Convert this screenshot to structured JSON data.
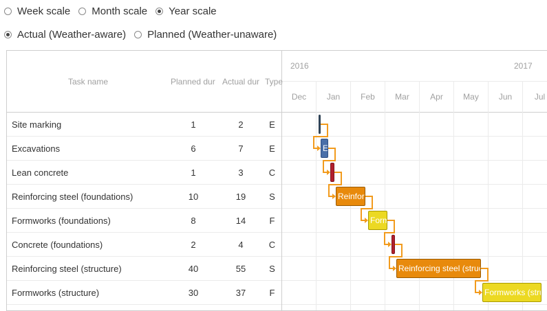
{
  "scale_options": [
    {
      "label": "Week scale",
      "checked": false
    },
    {
      "label": "Month scale",
      "checked": false
    },
    {
      "label": "Year scale",
      "checked": true
    }
  ],
  "mode_options": [
    {
      "label": "Actual (Weather-aware)",
      "checked": true
    },
    {
      "label": "Planned (Weather-unaware)",
      "checked": false
    }
  ],
  "grid": {
    "headers": {
      "name": "Task name",
      "planned": "Planned dur",
      "actual": "Actual dur",
      "type": "Type"
    }
  },
  "timeline": {
    "years": [
      {
        "label": "2016"
      },
      {
        "label": "2017"
      }
    ],
    "months": [
      "Dec",
      "Jan",
      "Feb",
      "Mar",
      "Apr",
      "May",
      "Jun",
      "Jul"
    ]
  },
  "tasks": [
    {
      "name": "Site marking",
      "planned": "1",
      "actual": "2",
      "type": "E",
      "bar_label": "",
      "color": "#34495e",
      "border": "#2c3e50"
    },
    {
      "name": "Excavations",
      "planned": "6",
      "actual": "7",
      "type": "E",
      "bar_label": "E",
      "color": "#4a6fa8",
      "border": "#2f4e82"
    },
    {
      "name": "Lean concrete",
      "planned": "1",
      "actual": "3",
      "type": "C",
      "bar_label": "",
      "color": "#b21f2d",
      "border": "#7d1620"
    },
    {
      "name": "Reinforcing steel (foundations)",
      "planned": "10",
      "actual": "19",
      "type": "S",
      "bar_label": "Reinforc",
      "color": "#e88a0c",
      "border": "#9a5a00"
    },
    {
      "name": "Formworks (foundations)",
      "planned": "8",
      "actual": "14",
      "type": "F",
      "bar_label": "Form",
      "color": "#ecd922",
      "border": "#a89b00"
    },
    {
      "name": "Concrete (foundations)",
      "planned": "2",
      "actual": "4",
      "type": "C",
      "bar_label": "",
      "color": "#b21f2d",
      "border": "#7d1620"
    },
    {
      "name": "Reinforcing steel (structure)",
      "planned": "40",
      "actual": "55",
      "type": "S",
      "bar_label": "Reinforcing steel (struc",
      "color": "#e88a0c",
      "border": "#9a5a00"
    },
    {
      "name": "Formworks (structure)",
      "planned": "30",
      "actual": "37",
      "type": "F",
      "bar_label": "Formworks (stru",
      "color": "#ecd922",
      "border": "#a89b00"
    }
  ],
  "link_color": "#f29b1d"
}
